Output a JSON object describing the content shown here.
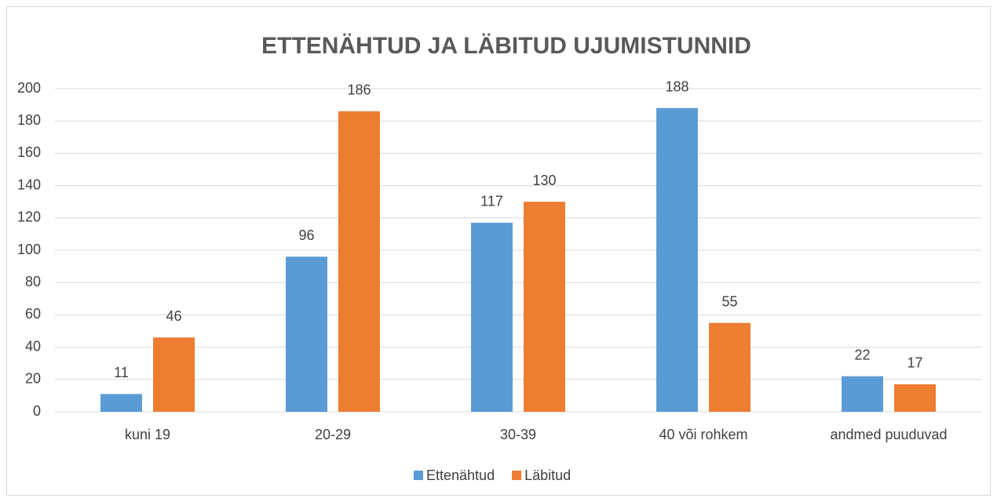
{
  "chart_data": {
    "type": "bar",
    "title": "ETTENÄHTUD JA LÄBITUD UJUMISTUNNID",
    "categories": [
      "kuni 19",
      "20-29",
      "30-39",
      "40 või rohkem",
      "andmed puuduvad"
    ],
    "series": [
      {
        "name": "Ettenähtud",
        "color": "#5b9bd5",
        "values": [
          11,
          96,
          117,
          188,
          22
        ]
      },
      {
        "name": "Läbitud",
        "color": "#ed7d31",
        "values": [
          46,
          186,
          130,
          55,
          17
        ]
      }
    ],
    "ylim": [
      0,
      200
    ],
    "yticks": [
      0,
      20,
      40,
      60,
      80,
      100,
      120,
      140,
      160,
      180,
      200
    ],
    "grid": true,
    "legend": "bottom",
    "data_labels": true
  }
}
